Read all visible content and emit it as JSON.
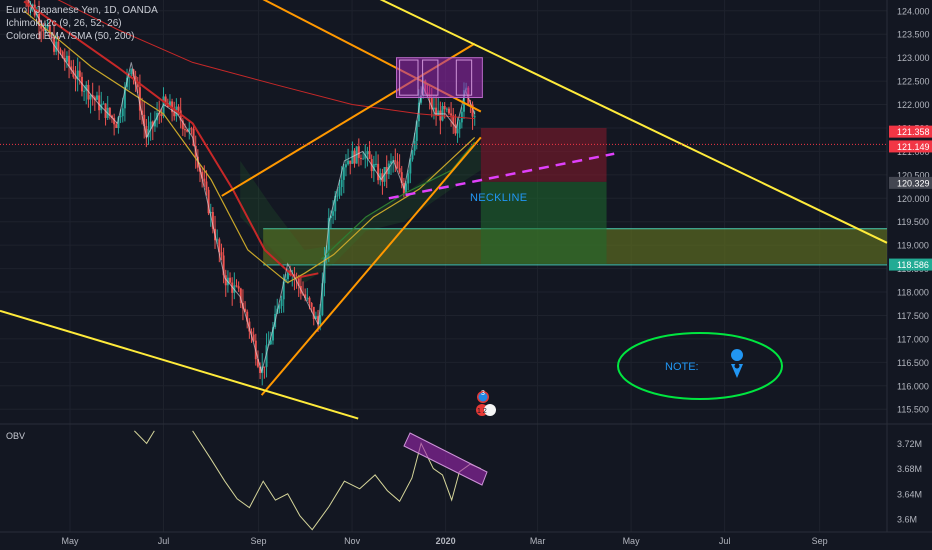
{
  "legend": {
    "symbol": "Euro / Japanese Yen, 1D, OANDA",
    "ichimoku": "Ichimoku2c (9, 26, 52, 26)",
    "ema": "Colored EMA /SMA (50, 200)"
  },
  "annotations": {
    "neckline": "NECKLINE",
    "note": "NOTE:"
  },
  "obv_label": "OBV",
  "events": {
    "a": "3",
    "b": "1 2"
  },
  "price_badges": [
    {
      "value": "121.358",
      "color": "#f23645"
    },
    {
      "value": "121.149",
      "color": "#f23645"
    },
    {
      "value": "120.329",
      "color": "#434651"
    },
    {
      "value": "118.586",
      "color": "#22ab94"
    }
  ],
  "colors": {
    "background": "#131722",
    "bull": "#26a69a",
    "bear": "#ef5350",
    "trend_yellow": "#ffeb3b",
    "channel_orange": "#ff9800",
    "neckline_magenta": "#e040fb",
    "zone_fill": "#5b6b1f",
    "zone_border": "#4dd0b0",
    "ema50": "#c8a62a",
    "ema200": "#c62828",
    "note_circle": "#00e640",
    "obv_line": "#d5d59a",
    "highlight_purple": "#9c27b0",
    "label_blue": "#2196f3"
  },
  "chart_data": [
    {
      "type": "candlestick",
      "title": "Euro / Japanese Yen, 1D, OANDA",
      "x_ticks": [
        "May",
        "Jul",
        "Sep",
        "Nov",
        "2020",
        "Mar",
        "May",
        "Jul",
        "Sep"
      ],
      "y_ticks": [
        "124.000",
        "123.500",
        "123.000",
        "122.500",
        "122.000",
        "121.500",
        "121.000",
        "120.500",
        "120.000",
        "119.500",
        "119.000",
        "118.500",
        "118.000",
        "117.500",
        "117.000",
        "116.500",
        "116.000",
        "115.500"
      ],
      "ylim": [
        115.27,
        124.18
      ],
      "x_range": [
        "2019-04-01",
        "2020-10-15"
      ],
      "grid": true,
      "legend_position": "top-left",
      "close_path": [
        [
          "2019-04-01",
          124.4
        ],
        [
          "2019-04-20",
          123.3
        ],
        [
          "2019-05-05",
          122.6
        ],
        [
          "2019-05-20",
          122.0
        ],
        [
          "2019-06-01",
          121.6
        ],
        [
          "2019-06-10",
          122.9
        ],
        [
          "2019-06-20",
          121.3
        ],
        [
          "2019-07-01",
          122.0
        ],
        [
          "2019-07-10",
          121.8
        ],
        [
          "2019-07-20",
          121.3
        ],
        [
          "2019-08-01",
          119.6
        ],
        [
          "2019-08-10",
          118.3
        ],
        [
          "2019-08-20",
          117.9
        ],
        [
          "2019-08-28",
          117.0
        ],
        [
          "2019-09-03",
          116.3
        ],
        [
          "2019-09-12",
          117.4
        ],
        [
          "2019-09-20",
          118.6
        ],
        [
          "2019-10-01",
          117.9
        ],
        [
          "2019-10-10",
          117.3
        ],
        [
          "2019-10-17",
          119.5
        ],
        [
          "2019-10-27",
          120.8
        ],
        [
          "2019-11-08",
          121.0
        ],
        [
          "2019-11-20",
          120.4
        ],
        [
          "2019-11-28",
          120.8
        ],
        [
          "2019-12-05",
          120.2
        ],
        [
          "2019-12-12",
          121.4
        ],
        [
          "2019-12-17",
          122.4
        ],
        [
          "2019-12-25",
          121.8
        ],
        [
          "2020-01-01",
          121.8
        ],
        [
          "2020-01-08",
          121.5
        ],
        [
          "2020-01-14",
          122.3
        ],
        [
          "2020-01-20",
          121.8
        ]
      ],
      "ema50_path": [
        [
          "2019-04-01",
          124.0
        ],
        [
          "2019-05-15",
          122.8
        ],
        [
          "2019-07-01",
          121.8
        ],
        [
          "2019-08-01",
          120.4
        ],
        [
          "2019-08-25",
          118.9
        ],
        [
          "2019-09-20",
          118.2
        ],
        [
          "2019-10-20",
          118.6
        ],
        [
          "2019-11-15",
          119.6
        ],
        [
          "2019-12-15",
          120.2
        ],
        [
          "2020-01-20",
          121.3
        ]
      ],
      "sma200_path": [
        [
          "2019-04-01",
          124.6
        ],
        [
          "2019-06-01",
          123.6
        ],
        [
          "2019-07-20",
          122.9
        ],
        [
          "2019-09-15",
          122.4
        ],
        [
          "2019-11-01",
          122.0
        ],
        [
          "2019-12-15",
          121.8
        ],
        [
          "2020-01-20",
          121.7
        ]
      ]
    },
    {
      "type": "line",
      "title": "OBV",
      "y_ticks": [
        "3.72M",
        "3.68M",
        "3.64M",
        "3.6M"
      ],
      "ylim": [
        3.592,
        3.735
      ],
      "series": [
        {
          "values": [
            [
              "2019-07-20",
              3.74
            ],
            [
              "2019-08-01",
              3.695
            ],
            [
              "2019-08-10",
              3.66
            ],
            [
              "2019-08-18",
              3.632
            ],
            [
              "2019-08-26",
              3.618
            ],
            [
              "2019-09-04",
              3.66
            ],
            [
              "2019-09-12",
              3.63
            ],
            [
              "2019-09-20",
              3.64
            ],
            [
              "2019-09-28",
              3.605
            ],
            [
              "2019-10-06",
              3.583
            ],
            [
              "2019-10-17",
              3.62
            ],
            [
              "2019-10-27",
              3.66
            ],
            [
              "2019-11-06",
              3.648
            ],
            [
              "2019-11-16",
              3.67
            ],
            [
              "2019-11-24",
              3.645
            ],
            [
              "2019-12-02",
              3.628
            ],
            [
              "2019-12-10",
              3.665
            ],
            [
              "2019-12-16",
              3.72
            ],
            [
              "2019-12-24",
              3.68
            ],
            [
              "2019-12-30",
              3.67
            ],
            [
              "2020-01-05",
              3.63
            ],
            [
              "2020-01-10",
              3.675
            ],
            [
              "2020-01-17",
              3.687
            ],
            [
              "2020-01-24",
              3.68
            ]
          ]
        }
      ]
    }
  ]
}
